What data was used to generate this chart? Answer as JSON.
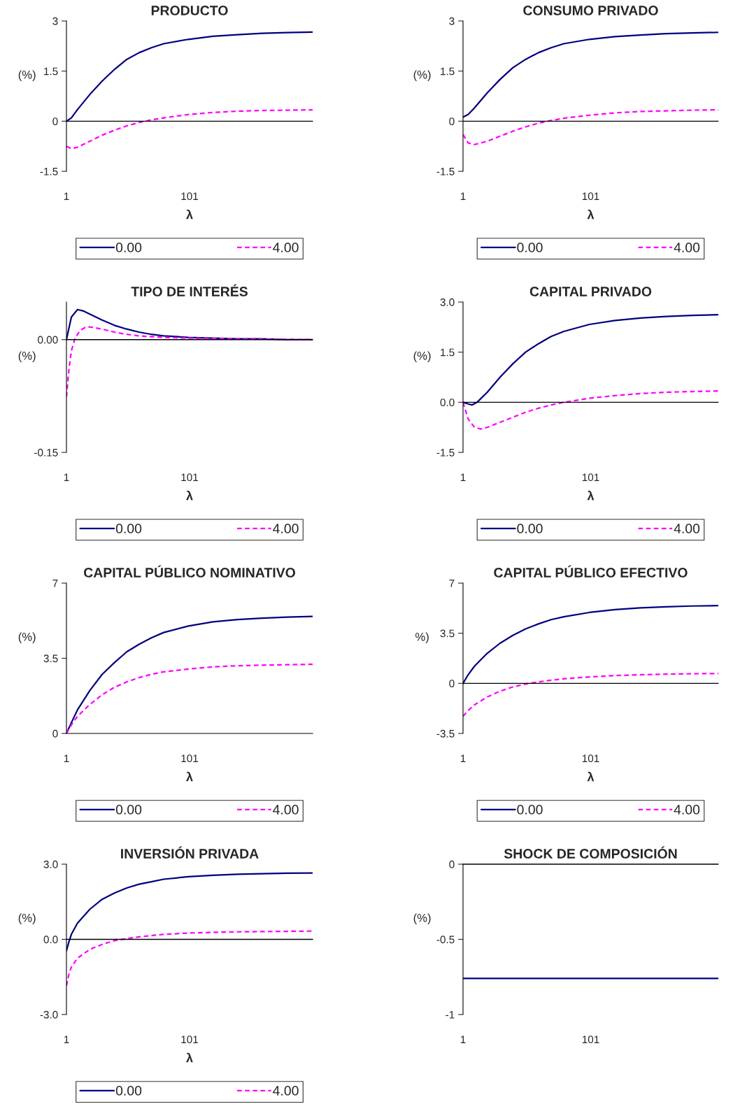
{
  "chart_data": [
    {
      "type": "line",
      "title": "PRODUCTO",
      "ylabel": "(%)",
      "xlabel": "λ",
      "xlim": [
        1,
        201
      ],
      "xticks": [
        1,
        101
      ],
      "ylim": [
        -1.5,
        3
      ],
      "yticks": [
        -1.5,
        0,
        1.5,
        3
      ],
      "legend": "bottom",
      "grid": false,
      "ref_lines": [
        {
          "axis": "y",
          "value": 0,
          "color": "#000000"
        }
      ],
      "series": [
        {
          "name": "0.00",
          "color": "#000080",
          "line_style": "solid",
          "x": [
            1,
            5,
            10,
            20,
            30,
            40,
            50,
            60,
            70,
            80,
            100,
            120,
            140,
            160,
            180,
            201
          ],
          "values": [
            0,
            0.1,
            0.35,
            0.8,
            1.2,
            1.55,
            1.85,
            2.05,
            2.2,
            2.32,
            2.45,
            2.54,
            2.59,
            2.63,
            2.65,
            2.67
          ]
        },
        {
          "name": "4.00",
          "color": "#ff00ff",
          "line_style": "dashed",
          "x": [
            1,
            5,
            10,
            20,
            30,
            40,
            50,
            60,
            70,
            80,
            100,
            120,
            140,
            160,
            180,
            201
          ],
          "values": [
            -0.75,
            -0.82,
            -0.78,
            -0.6,
            -0.42,
            -0.27,
            -0.14,
            -0.04,
            0.04,
            0.1,
            0.2,
            0.26,
            0.3,
            0.32,
            0.33,
            0.34
          ]
        }
      ]
    },
    {
      "type": "line",
      "title": "CONSUMO PRIVADO",
      "ylabel": "(%)",
      "xlabel": "λ",
      "xlim": [
        1,
        201
      ],
      "xticks": [
        1,
        101
      ],
      "ylim": [
        -1.5,
        3
      ],
      "yticks": [
        -1.5,
        0,
        1.5,
        3
      ],
      "legend": "bottom",
      "grid": false,
      "ref_lines": [
        {
          "axis": "y",
          "value": 0,
          "color": "#000000"
        }
      ],
      "series": [
        {
          "name": "0.00",
          "color": "#000080",
          "line_style": "solid",
          "x": [
            1,
            5,
            10,
            20,
            30,
            40,
            50,
            60,
            70,
            80,
            100,
            120,
            140,
            160,
            180,
            201
          ],
          "values": [
            0.12,
            0.2,
            0.4,
            0.85,
            1.25,
            1.6,
            1.85,
            2.05,
            2.2,
            2.32,
            2.45,
            2.53,
            2.58,
            2.62,
            2.64,
            2.66
          ]
        },
        {
          "name": "4.00",
          "color": "#ff00ff",
          "line_style": "dashed",
          "x": [
            1,
            5,
            10,
            20,
            30,
            40,
            50,
            60,
            70,
            80,
            100,
            120,
            140,
            160,
            180,
            201
          ],
          "values": [
            -0.4,
            -0.65,
            -0.7,
            -0.6,
            -0.45,
            -0.3,
            -0.17,
            -0.06,
            0.02,
            0.09,
            0.18,
            0.25,
            0.29,
            0.31,
            0.33,
            0.34
          ]
        }
      ]
    },
    {
      "type": "line",
      "title": "TIPO DE INTERÉS",
      "ylabel": "(%)",
      "xlabel": "λ",
      "xlim": [
        1,
        201
      ],
      "xticks": [
        1,
        101
      ],
      "ylim": [
        -0.15,
        0.05
      ],
      "yticks": [
        {
          "value": -0.15,
          "label": "-0.15"
        },
        {
          "value": 0,
          "label": "0.00"
        }
      ],
      "legend": "bottom",
      "grid": false,
      "ref_lines": [
        {
          "axis": "y",
          "value": 0,
          "color": "#000000"
        }
      ],
      "series": [
        {
          "name": "0.00",
          "color": "#000080",
          "line_style": "solid",
          "x": [
            1,
            5,
            10,
            15,
            20,
            30,
            40,
            50,
            60,
            70,
            80,
            100,
            120,
            140,
            160,
            180,
            201
          ],
          "values": [
            0,
            0.03,
            0.04,
            0.038,
            0.034,
            0.026,
            0.019,
            0.014,
            0.01,
            0.007,
            0.005,
            0.003,
            0.002,
            0.001,
            0.001,
            0,
            0
          ]
        },
        {
          "name": "4.00",
          "color": "#ff00ff",
          "line_style": "dashed",
          "x": [
            1,
            3,
            5,
            8,
            12,
            16,
            20,
            30,
            40,
            50,
            60,
            80,
            100,
            140,
            201
          ],
          "values": [
            -0.076,
            -0.04,
            -0.015,
            0.002,
            0.012,
            0.016,
            0.017,
            0.014,
            0.01,
            0.007,
            0.005,
            0.003,
            0.002,
            0.001,
            0
          ]
        }
      ]
    },
    {
      "type": "line",
      "title": "CAPITAL PRIVADO",
      "ylabel": "(%)",
      "xlabel": "λ",
      "xlim": [
        1,
        201
      ],
      "xticks": [
        1,
        101
      ],
      "ylim": [
        -1.5,
        3
      ],
      "yticks": [
        {
          "value": -1.5,
          "label": "-1.5"
        },
        {
          "value": 0,
          "label": "0.0"
        },
        {
          "value": 1.5,
          "label": "1.5"
        },
        {
          "value": 3,
          "label": "3.0"
        }
      ],
      "legend": "bottom",
      "grid": false,
      "ref_lines": [
        {
          "axis": "y",
          "value": 0,
          "color": "#000000"
        }
      ],
      "series": [
        {
          "name": "0.00",
          "color": "#000080",
          "line_style": "solid",
          "x": [
            1,
            5,
            8,
            12,
            20,
            30,
            40,
            50,
            60,
            70,
            80,
            100,
            120,
            140,
            160,
            180,
            201
          ],
          "values": [
            0,
            -0.05,
            -0.08,
            0,
            0.3,
            0.75,
            1.15,
            1.5,
            1.75,
            1.97,
            2.12,
            2.33,
            2.45,
            2.52,
            2.57,
            2.6,
            2.62
          ]
        },
        {
          "name": "4.00",
          "color": "#ff00ff",
          "line_style": "dashed",
          "x": [
            1,
            5,
            10,
            15,
            20,
            30,
            40,
            50,
            60,
            70,
            80,
            100,
            120,
            140,
            160,
            180,
            201
          ],
          "values": [
            0,
            -0.5,
            -0.75,
            -0.8,
            -0.75,
            -0.6,
            -0.45,
            -0.3,
            -0.18,
            -0.08,
            0,
            0.12,
            0.2,
            0.26,
            0.3,
            0.32,
            0.34
          ]
        }
      ]
    },
    {
      "type": "line",
      "title": "CAPITAL PÚBLICO NOMINATIVO",
      "ylabel": "(%)",
      "xlabel": "λ",
      "xlim": [
        1,
        201
      ],
      "xticks": [
        1,
        101
      ],
      "ylim": [
        0,
        7
      ],
      "yticks": [
        0,
        3.5,
        7
      ],
      "legend": "bottom",
      "grid": false,
      "series": [
        {
          "name": "0.00",
          "color": "#000080",
          "line_style": "solid",
          "x": [
            1,
            5,
            10,
            20,
            30,
            40,
            50,
            60,
            70,
            80,
            100,
            120,
            140,
            160,
            180,
            201
          ],
          "values": [
            0,
            0.5,
            1.1,
            2.0,
            2.75,
            3.3,
            3.8,
            4.15,
            4.45,
            4.7,
            5.0,
            5.2,
            5.3,
            5.37,
            5.42,
            5.45
          ]
        },
        {
          "name": "4.00",
          "color": "#ff00ff",
          "line_style": "dashed",
          "x": [
            1,
            5,
            10,
            20,
            30,
            40,
            50,
            60,
            70,
            80,
            100,
            120,
            140,
            160,
            180,
            201
          ],
          "values": [
            0,
            0.4,
            0.8,
            1.35,
            1.8,
            2.15,
            2.4,
            2.6,
            2.75,
            2.87,
            3.0,
            3.1,
            3.15,
            3.18,
            3.2,
            3.22
          ]
        }
      ]
    },
    {
      "type": "line",
      "title": "CAPITAL PÚBLICO EFECTIVO",
      "ylabel": "%)",
      "xlabel": "λ",
      "xlim": [
        1,
        201
      ],
      "xticks": [
        1,
        101
      ],
      "ylim": [
        -3.5,
        7
      ],
      "yticks": [
        -3.5,
        0,
        3.5,
        7
      ],
      "legend": "bottom",
      "grid": false,
      "ref_lines": [
        {
          "axis": "y",
          "value": 0,
          "color": "#000000"
        }
      ],
      "series": [
        {
          "name": "0.00",
          "color": "#000080",
          "line_style": "solid",
          "x": [
            1,
            5,
            10,
            20,
            30,
            40,
            50,
            60,
            70,
            80,
            100,
            120,
            140,
            160,
            180,
            201
          ],
          "values": [
            0,
            0.6,
            1.2,
            2.1,
            2.8,
            3.35,
            3.8,
            4.15,
            4.45,
            4.65,
            4.95,
            5.15,
            5.27,
            5.35,
            5.4,
            5.43
          ]
        },
        {
          "name": "4.00",
          "color": "#ff00ff",
          "line_style": "dashed",
          "x": [
            1,
            5,
            10,
            20,
            30,
            40,
            50,
            60,
            70,
            80,
            100,
            120,
            140,
            160,
            180,
            201
          ],
          "values": [
            -2.3,
            -1.9,
            -1.5,
            -0.95,
            -0.55,
            -0.25,
            -0.05,
            0.1,
            0.22,
            0.32,
            0.45,
            0.54,
            0.6,
            0.64,
            0.67,
            0.69
          ]
        }
      ]
    },
    {
      "type": "line",
      "title": "INVERSIÓN PRIVADA",
      "ylabel": "(%)",
      "xlabel": "λ",
      "xlim": [
        1,
        201
      ],
      "xticks": [
        1,
        101
      ],
      "ylim": [
        -3,
        3
      ],
      "yticks": [
        {
          "value": -3,
          "label": "-3.0"
        },
        {
          "value": 0,
          "label": "0.0"
        },
        {
          "value": 3,
          "label": "3.0"
        }
      ],
      "legend": "bottom",
      "grid": false,
      "ref_lines": [
        {
          "axis": "y",
          "value": 0,
          "color": "#000000"
        }
      ],
      "series": [
        {
          "name": "0.00",
          "color": "#000080",
          "line_style": "solid",
          "x": [
            1,
            3,
            5,
            10,
            20,
            30,
            40,
            50,
            60,
            70,
            80,
            100,
            120,
            140,
            160,
            180,
            201
          ],
          "values": [
            -0.45,
            -0.1,
            0.2,
            0.65,
            1.2,
            1.6,
            1.85,
            2.05,
            2.2,
            2.3,
            2.4,
            2.5,
            2.56,
            2.6,
            2.62,
            2.64,
            2.65
          ]
        },
        {
          "name": "4.00",
          "color": "#ff00ff",
          "line_style": "dashed",
          "x": [
            1,
            3,
            5,
            10,
            20,
            30,
            40,
            50,
            60,
            70,
            80,
            100,
            120,
            140,
            160,
            180,
            201
          ],
          "values": [
            -1.85,
            -1.4,
            -1.1,
            -0.75,
            -0.4,
            -0.2,
            -0.05,
            0.03,
            0.1,
            0.15,
            0.2,
            0.25,
            0.28,
            0.3,
            0.31,
            0.32,
            0.33
          ]
        }
      ]
    },
    {
      "type": "line",
      "title": "SHOCK DE COMPOSICIÓN",
      "ylabel": "(%)",
      "xlim": [
        1,
        201
      ],
      "xticks": [
        1,
        101
      ],
      "ylim": [
        -1,
        0
      ],
      "yticks": [
        -1,
        -0.5,
        0
      ],
      "legend": false,
      "grid": false,
      "ref_lines": [
        {
          "axis": "y",
          "value": 0,
          "color": "#000000"
        }
      ],
      "series": [
        {
          "color": "#000080",
          "line_style": "solid",
          "x": [
            1,
            201
          ],
          "values": [
            -0.76,
            -0.76
          ]
        }
      ]
    }
  ]
}
